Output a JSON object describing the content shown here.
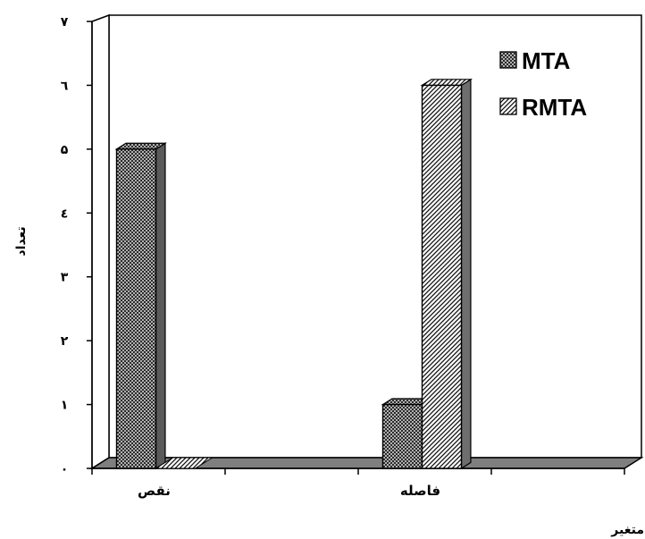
{
  "chart_data": {
    "type": "bar",
    "style": "3d-clustered",
    "categories": [
      "نقص",
      "فاصله"
    ],
    "series": [
      {
        "name": "MTA",
        "values": [
          5,
          1
        ],
        "pattern": "crosshatch"
      },
      {
        "name": "RMTA",
        "values": [
          0,
          6
        ],
        "pattern": "diagonal"
      }
    ],
    "y_tick_labels": [
      "۰",
      "۱",
      "۲",
      "۳",
      "٤",
      "۵",
      "٦",
      "۷"
    ],
    "ylim": [
      0,
      7
    ],
    "xlabel": "متغیر",
    "ylabel": "تعداد",
    "title": "",
    "grid": false,
    "legend_position": "top-right"
  }
}
